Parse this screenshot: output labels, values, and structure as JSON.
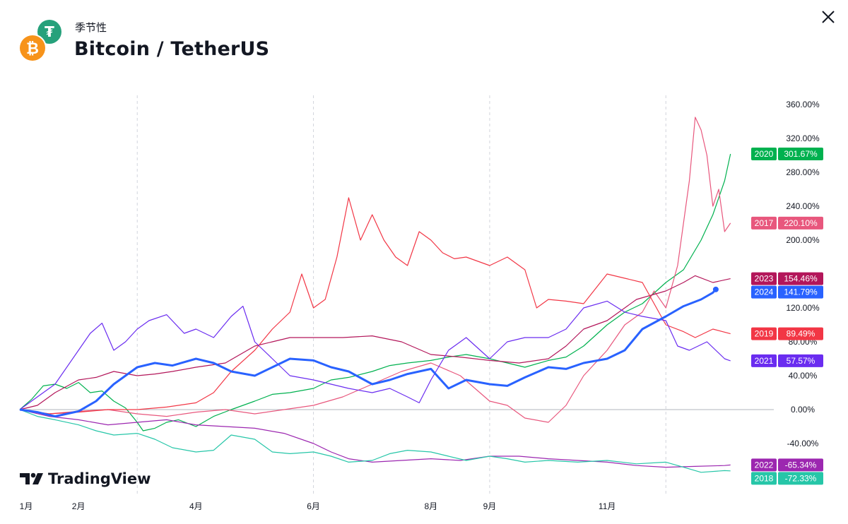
{
  "header": {
    "subtitle": "季节性",
    "title": "Bitcoin / TetherUS",
    "tether_icon_glyph": "₮",
    "bitcoin_icon_glyph": "₿"
  },
  "icons": {
    "tether": "tether-icon",
    "bitcoin": "bitcoin-icon",
    "close": "close-icon",
    "brand": "tradingview-logo-icon"
  },
  "watermark": {
    "text": "TradingView"
  },
  "chart_data": {
    "type": "line",
    "y_axis": {
      "ticks": [
        "360.00%",
        "320.00%",
        "280.00%",
        "240.00%",
        "200.00%",
        "120.00%",
        "80.00%",
        "40.00%",
        "0.00%",
        "-40.00%"
      ],
      "tick_values": [
        360,
        320,
        280,
        240,
        200,
        120,
        80,
        40,
        0,
        -40
      ],
      "ylim": [
        -80,
        370
      ]
    },
    "x_axis": {
      "months": [
        "1月",
        "2月",
        "4月",
        "6月",
        "8月",
        "9月",
        "11月"
      ],
      "month_positions": [
        1,
        2,
        4,
        6,
        8,
        9,
        11
      ],
      "xlim": [
        1,
        13.2
      ]
    },
    "grid": {
      "vertical_dashed_at": [
        3,
        6,
        9,
        12
      ],
      "zero_line": true
    },
    "series": [
      {
        "name": "2020",
        "color": "#00b14f",
        "last_label": "301.67%",
        "last_value": 301.67,
        "width": 1.2,
        "points": [
          [
            1,
            0
          ],
          [
            1.2,
            12
          ],
          [
            1.4,
            28
          ],
          [
            1.6,
            30
          ],
          [
            1.8,
            25
          ],
          [
            2,
            32
          ],
          [
            2.2,
            20
          ],
          [
            2.4,
            22
          ],
          [
            2.6,
            10
          ],
          [
            2.8,
            2
          ],
          [
            3,
            -15
          ],
          [
            3.1,
            -25
          ],
          [
            3.3,
            -22
          ],
          [
            3.5,
            -15
          ],
          [
            3.7,
            -12
          ],
          [
            4,
            -20
          ],
          [
            4.3,
            -8
          ],
          [
            4.6,
            0
          ],
          [
            5,
            10
          ],
          [
            5.3,
            18
          ],
          [
            5.6,
            20
          ],
          [
            6,
            25
          ],
          [
            6.3,
            35
          ],
          [
            6.6,
            38
          ],
          [
            7,
            45
          ],
          [
            7.3,
            52
          ],
          [
            7.6,
            55
          ],
          [
            8,
            58
          ],
          [
            8.3,
            62
          ],
          [
            8.6,
            65
          ],
          [
            9,
            60
          ],
          [
            9.3,
            55
          ],
          [
            9.6,
            50
          ],
          [
            10,
            58
          ],
          [
            10.3,
            62
          ],
          [
            10.6,
            75
          ],
          [
            11,
            100
          ],
          [
            11.3,
            115
          ],
          [
            11.6,
            125
          ],
          [
            12,
            150
          ],
          [
            12.3,
            165
          ],
          [
            12.6,
            200
          ],
          [
            12.8,
            230
          ],
          [
            13,
            270
          ],
          [
            13.1,
            301.67
          ]
        ]
      },
      {
        "name": "2017",
        "color": "#e8577d",
        "last_label": "220.10%",
        "last_value": 220.1,
        "width": 1.2,
        "points": [
          [
            1,
            0
          ],
          [
            1.5,
            -5
          ],
          [
            2,
            -2
          ],
          [
            2.5,
            0
          ],
          [
            3,
            -5
          ],
          [
            3.5,
            -8
          ],
          [
            4,
            -3
          ],
          [
            4.5,
            0
          ],
          [
            5,
            -5
          ],
          [
            5.5,
            0
          ],
          [
            6,
            5
          ],
          [
            6.5,
            15
          ],
          [
            7,
            30
          ],
          [
            7.5,
            45
          ],
          [
            8,
            55
          ],
          [
            8.5,
            40
          ],
          [
            9,
            10
          ],
          [
            9.3,
            5
          ],
          [
            9.6,
            -10
          ],
          [
            10,
            -15
          ],
          [
            10.3,
            5
          ],
          [
            10.6,
            40
          ],
          [
            11,
            70
          ],
          [
            11.3,
            100
          ],
          [
            11.6,
            115
          ],
          [
            11.8,
            140
          ],
          [
            12,
            120
          ],
          [
            12.2,
            170
          ],
          [
            12.4,
            270
          ],
          [
            12.5,
            345
          ],
          [
            12.6,
            330
          ],
          [
            12.7,
            300
          ],
          [
            12.8,
            240
          ],
          [
            12.9,
            260
          ],
          [
            13,
            210
          ],
          [
            13.1,
            220.1
          ]
        ]
      },
      {
        "name": "2023",
        "color": "#b3165a",
        "last_label": "154.46%",
        "last_value": 154.46,
        "width": 1.2,
        "points": [
          [
            1,
            0
          ],
          [
            1.3,
            5
          ],
          [
            1.6,
            20
          ],
          [
            2,
            35
          ],
          [
            2.3,
            38
          ],
          [
            2.6,
            45
          ],
          [
            3,
            40
          ],
          [
            3.3,
            42
          ],
          [
            3.6,
            45
          ],
          [
            4,
            50
          ],
          [
            4.5,
            55
          ],
          [
            5,
            75
          ],
          [
            5.3,
            80
          ],
          [
            5.6,
            85
          ],
          [
            6,
            85
          ],
          [
            6.5,
            85
          ],
          [
            7,
            87
          ],
          [
            7.5,
            80
          ],
          [
            8,
            65
          ],
          [
            8.5,
            62
          ],
          [
            9,
            58
          ],
          [
            9.5,
            55
          ],
          [
            10,
            60
          ],
          [
            10.3,
            75
          ],
          [
            10.6,
            95
          ],
          [
            11,
            105
          ],
          [
            11.5,
            130
          ],
          [
            12,
            140
          ],
          [
            12.3,
            150
          ],
          [
            12.5,
            158
          ],
          [
            12.8,
            150
          ],
          [
            13.1,
            154.46
          ]
        ]
      },
      {
        "name": "2024",
        "color": "#2962ff",
        "last_label": "141.79%",
        "last_value": 141.79,
        "width": 3,
        "points": [
          [
            1,
            0
          ],
          [
            1.3,
            -3
          ],
          [
            1.6,
            -8
          ],
          [
            2,
            -2
          ],
          [
            2.3,
            10
          ],
          [
            2.6,
            30
          ],
          [
            3,
            50
          ],
          [
            3.3,
            55
          ],
          [
            3.6,
            52
          ],
          [
            4,
            60
          ],
          [
            4.3,
            55
          ],
          [
            4.6,
            45
          ],
          [
            5,
            40
          ],
          [
            5.3,
            50
          ],
          [
            5.6,
            60
          ],
          [
            6,
            58
          ],
          [
            6.3,
            50
          ],
          [
            6.6,
            45
          ],
          [
            7,
            30
          ],
          [
            7.3,
            35
          ],
          [
            7.6,
            42
          ],
          [
            8,
            48
          ],
          [
            8.3,
            25
          ],
          [
            8.6,
            35
          ],
          [
            9,
            30
          ],
          [
            9.3,
            28
          ],
          [
            9.6,
            38
          ],
          [
            10,
            50
          ],
          [
            10.3,
            48
          ],
          [
            10.6,
            55
          ],
          [
            11,
            60
          ],
          [
            11.3,
            70
          ],
          [
            11.6,
            95
          ],
          [
            12,
            110
          ],
          [
            12.3,
            122
          ],
          [
            12.6,
            130
          ],
          [
            12.8,
            138
          ],
          [
            12.85,
            141.79
          ]
        ]
      },
      {
        "name": "2019",
        "color": "#f23645",
        "last_label": "89.49%",
        "last_value": 89.49,
        "width": 1.2,
        "points": [
          [
            1,
            0
          ],
          [
            1.5,
            -5
          ],
          [
            2,
            -3
          ],
          [
            2.5,
            0
          ],
          [
            3,
            0
          ],
          [
            3.5,
            3
          ],
          [
            4,
            8
          ],
          [
            4.3,
            20
          ],
          [
            4.6,
            45
          ],
          [
            5,
            70
          ],
          [
            5.3,
            95
          ],
          [
            5.6,
            115
          ],
          [
            5.8,
            160
          ],
          [
            6,
            120
          ],
          [
            6.2,
            130
          ],
          [
            6.4,
            180
          ],
          [
            6.6,
            250
          ],
          [
            6.8,
            200
          ],
          [
            7,
            230
          ],
          [
            7.2,
            200
          ],
          [
            7.4,
            180
          ],
          [
            7.6,
            170
          ],
          [
            7.8,
            210
          ],
          [
            8,
            200
          ],
          [
            8.2,
            185
          ],
          [
            8.4,
            178
          ],
          [
            8.6,
            180
          ],
          [
            9,
            170
          ],
          [
            9.3,
            180
          ],
          [
            9.6,
            165
          ],
          [
            9.8,
            120
          ],
          [
            10,
            130
          ],
          [
            10.3,
            128
          ],
          [
            10.6,
            125
          ],
          [
            11,
            160
          ],
          [
            11.3,
            155
          ],
          [
            11.6,
            150
          ],
          [
            12,
            100
          ],
          [
            12.3,
            92
          ],
          [
            12.5,
            85
          ],
          [
            12.8,
            95
          ],
          [
            13.1,
            89.49
          ]
        ]
      },
      {
        "name": "2021",
        "color": "#6a2cf0",
        "last_label": "57.57%",
        "last_value": 57.57,
        "width": 1.2,
        "points": [
          [
            1,
            0
          ],
          [
            1.3,
            15
          ],
          [
            1.6,
            30
          ],
          [
            2,
            70
          ],
          [
            2.2,
            90
          ],
          [
            2.4,
            102
          ],
          [
            2.6,
            70
          ],
          [
            2.8,
            80
          ],
          [
            3,
            95
          ],
          [
            3.2,
            105
          ],
          [
            3.5,
            112
          ],
          [
            3.8,
            90
          ],
          [
            4,
            95
          ],
          [
            4.3,
            85
          ],
          [
            4.6,
            110
          ],
          [
            4.8,
            122
          ],
          [
            5,
            80
          ],
          [
            5.3,
            60
          ],
          [
            5.6,
            40
          ],
          [
            6,
            35
          ],
          [
            6.3,
            30
          ],
          [
            6.6,
            25
          ],
          [
            7,
            20
          ],
          [
            7.3,
            25
          ],
          [
            7.6,
            15
          ],
          [
            7.8,
            8
          ],
          [
            8,
            35
          ],
          [
            8.3,
            70
          ],
          [
            8.6,
            85
          ],
          [
            9,
            60
          ],
          [
            9.3,
            80
          ],
          [
            9.6,
            85
          ],
          [
            10,
            85
          ],
          [
            10.3,
            95
          ],
          [
            10.6,
            120
          ],
          [
            11,
            128
          ],
          [
            11.3,
            115
          ],
          [
            11.6,
            110
          ],
          [
            12,
            105
          ],
          [
            12.2,
            75
          ],
          [
            12.4,
            70
          ],
          [
            12.7,
            80
          ],
          [
            13,
            60
          ],
          [
            13.1,
            57.57
          ]
        ]
      },
      {
        "name": "2022",
        "color": "#9c27b0",
        "last_label": "-65.34%",
        "last_value": -65.34,
        "width": 1.2,
        "points": [
          [
            1,
            0
          ],
          [
            1.5,
            -8
          ],
          [
            2,
            -12
          ],
          [
            2.5,
            -18
          ],
          [
            3,
            -15
          ],
          [
            3.5,
            -12
          ],
          [
            4,
            -18
          ],
          [
            4.5,
            -20
          ],
          [
            5,
            -22
          ],
          [
            5.5,
            -28
          ],
          [
            6,
            -40
          ],
          [
            6.3,
            -50
          ],
          [
            6.6,
            -58
          ],
          [
            7,
            -62
          ],
          [
            7.5,
            -60
          ],
          [
            8,
            -58
          ],
          [
            8.5,
            -60
          ],
          [
            9,
            -55
          ],
          [
            9.5,
            -55
          ],
          [
            10,
            -58
          ],
          [
            10.5,
            -60
          ],
          [
            11,
            -62
          ],
          [
            11.5,
            -66
          ],
          [
            12,
            -68
          ],
          [
            12.5,
            -67
          ],
          [
            13,
            -66
          ],
          [
            13.1,
            -65.34
          ]
        ]
      },
      {
        "name": "2018",
        "color": "#26c6a8",
        "last_label": "-72.33%",
        "last_value": -72.33,
        "width": 1.2,
        "points": [
          [
            1,
            0
          ],
          [
            1.3,
            -8
          ],
          [
            1.6,
            -12
          ],
          [
            2,
            -18
          ],
          [
            2.3,
            -25
          ],
          [
            2.6,
            -30
          ],
          [
            3,
            -28
          ],
          [
            3.3,
            -35
          ],
          [
            3.6,
            -45
          ],
          [
            4,
            -50
          ],
          [
            4.3,
            -48
          ],
          [
            4.6,
            -30
          ],
          [
            5,
            -35
          ],
          [
            5.3,
            -50
          ],
          [
            5.6,
            -52
          ],
          [
            6,
            -50
          ],
          [
            6.3,
            -55
          ],
          [
            6.6,
            -62
          ],
          [
            7,
            -60
          ],
          [
            7.3,
            -52
          ],
          [
            7.6,
            -48
          ],
          [
            8,
            -50
          ],
          [
            8.3,
            -55
          ],
          [
            8.6,
            -60
          ],
          [
            9,
            -55
          ],
          [
            9.3,
            -58
          ],
          [
            9.6,
            -62
          ],
          [
            10,
            -60
          ],
          [
            10.5,
            -62
          ],
          [
            11,
            -60
          ],
          [
            11.5,
            -64
          ],
          [
            12,
            -62
          ],
          [
            12.3,
            -68
          ],
          [
            12.6,
            -74
          ],
          [
            13,
            -72
          ],
          [
            13.1,
            -72.33
          ]
        ]
      }
    ]
  }
}
